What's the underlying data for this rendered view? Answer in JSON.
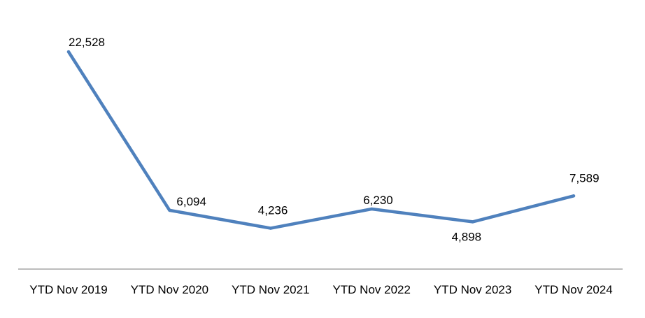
{
  "chart_data": {
    "type": "line",
    "title": "",
    "xlabel": "",
    "ylabel": "",
    "categories": [
      "YTD Nov 2019",
      "YTD Nov 2020",
      "YTD Nov 2021",
      "YTD Nov 2022",
      "YTD Nov 2023",
      "YTD Nov 2024"
    ],
    "series": [
      {
        "values": [
          22528,
          6094,
          4236,
          6230,
          4898,
          7589
        ],
        "data_labels": [
          "22,528",
          "6,094",
          "4,236",
          "6,230",
          "4,898",
          "7,589"
        ],
        "color": "#4F81BD"
      }
    ],
    "ylim": [
      0,
      25000
    ],
    "grid": false,
    "legend": "none",
    "axis_color": "#A6A6A6"
  }
}
